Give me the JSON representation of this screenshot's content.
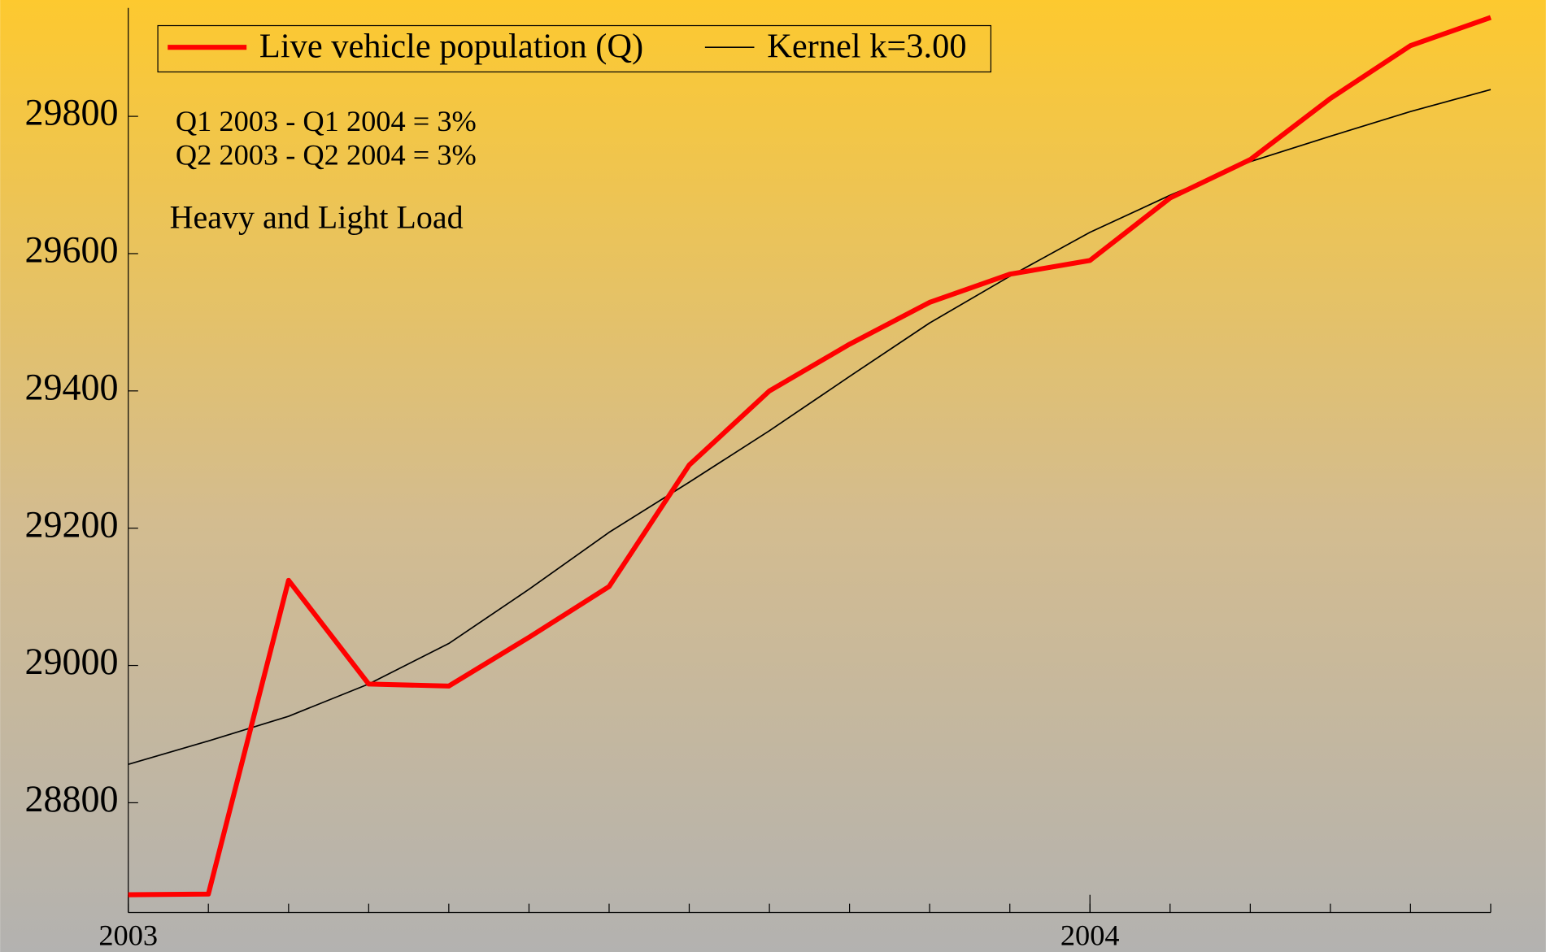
{
  "chart_data": {
    "type": "line",
    "x": [
      2003,
      2003.0833,
      2003.1667,
      2003.25,
      2003.3333,
      2003.4167,
      2003.5,
      2003.5833,
      2003.6667,
      2003.75,
      2003.8333,
      2003.9167,
      2004,
      2004.0833,
      2004.1667,
      2004.25,
      2004.3333,
      2004.4167
    ],
    "series": [
      {
        "name": "Live vehicle population (Q)",
        "color": "#ff0000",
        "values": [
          28666,
          28667,
          29124,
          28973,
          28970,
          29041,
          29115,
          29292,
          29400,
          29468,
          29529,
          29570,
          29590,
          29681,
          29737,
          29826,
          29903,
          29944
        ]
      },
      {
        "name": "Kernel k=3.00",
        "color": "#000000",
        "values": [
          28856,
          28890,
          28926,
          28973,
          29032,
          29111,
          29194,
          29267,
          29342,
          29421,
          29499,
          29567,
          29631,
          29685,
          29734,
          29771,
          29807,
          29839
        ]
      }
    ],
    "xlim": [
      2003,
      2004.4167
    ],
    "xticks": [
      2003,
      2004
    ],
    "ylim": [
      28640,
      29958
    ],
    "yticks": [
      28800,
      29000,
      29200,
      29400,
      29600,
      29800
    ],
    "annotations": [
      "Q1 2003 - Q1 2004 = 3%",
      "Q2 2003 - Q2 2004 = 3%",
      "Heavy and Light Load"
    ],
    "legend": "top-left"
  }
}
